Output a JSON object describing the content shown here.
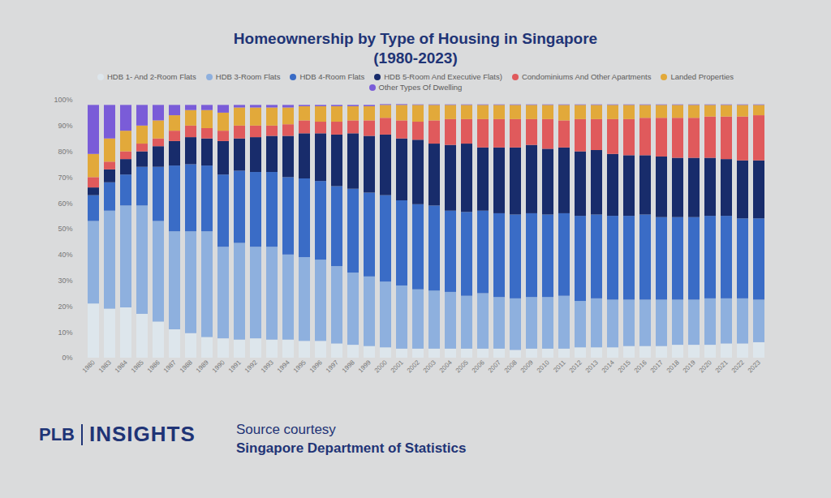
{
  "chart_data": {
    "type": "bar",
    "title": "Homeownership by Type of Housing in Singapore",
    "subtitle": "(1980-2023)",
    "stacked": true,
    "grid": false,
    "legend": "top",
    "categories": [
      "1980",
      "1983",
      "1984",
      "1985",
      "1986",
      "1987",
      "1988",
      "1989",
      "1990",
      "1991",
      "1992",
      "1993",
      "1994",
      "1995",
      "1996",
      "1997",
      "1998",
      "1999",
      "2000",
      "2001",
      "2002",
      "2003",
      "2004",
      "2005",
      "2006",
      "2007",
      "2008",
      "2009",
      "2010",
      "2011",
      "2012",
      "2013",
      "2014",
      "2015",
      "2016",
      "2017",
      "2018",
      "2019",
      "2020",
      "2021",
      "2022",
      "2023"
    ],
    "series": [
      {
        "name": "HDB 1- And 2-Room Flats",
        "color": "#dde6ec",
        "values": [
          21,
          19,
          19.5,
          17,
          14,
          11,
          9.5,
          8,
          7.5,
          7,
          7.5,
          7,
          7,
          6.5,
          6.5,
          5.5,
          5,
          4.5,
          4,
          3.5,
          3.5,
          3.5,
          3.5,
          3.5,
          3.5,
          3.5,
          3,
          3.5,
          3.5,
          3.5,
          4,
          4,
          4,
          4.5,
          4.5,
          4.5,
          5,
          5,
          5,
          5.5,
          5.5,
          6
        ]
      },
      {
        "name": "HDB 3-Room Flats",
        "color": "#8eb0de",
        "values": [
          32,
          38,
          39.5,
          42,
          39,
          38,
          39.5,
          41,
          35.5,
          37.5,
          35.5,
          36,
          33,
          32.5,
          31.5,
          30,
          28,
          27,
          25.5,
          24.5,
          23,
          22.5,
          22,
          20.5,
          21.5,
          20,
          20,
          20,
          20,
          20.5,
          18,
          19,
          18.5,
          18,
          18,
          18,
          17.5,
          17.5,
          18,
          17.5,
          17.5,
          16.5
        ]
      },
      {
        "name": "HDB 4-Room Flats",
        "color": "#3a6cc6",
        "values": [
          10,
          11,
          12,
          15,
          21,
          25.5,
          26,
          25.5,
          28,
          28,
          29,
          29,
          30,
          30.5,
          30.5,
          31,
          32.5,
          32.5,
          33.5,
          33,
          33,
          33,
          31.5,
          32.5,
          32,
          32.5,
          32.5,
          32.5,
          32,
          32,
          33,
          32.5,
          32.5,
          32.5,
          33,
          32,
          32,
          32,
          32,
          32,
          31,
          31.5
        ]
      },
      {
        "name": "HDB 5-Room And Executive Flats)",
        "color": "#182c6b",
        "values": [
          3,
          5,
          6,
          6,
          8,
          9.5,
          10.5,
          10.5,
          13,
          12.5,
          13.5,
          14,
          16,
          17.5,
          18.5,
          20,
          21.5,
          22,
          23.5,
          24,
          25,
          24,
          25.5,
          26.5,
          24.5,
          25.5,
          26,
          26.5,
          25.5,
          25.5,
          25,
          25,
          24,
          23.5,
          23,
          23.5,
          23,
          23,
          22.5,
          22,
          22.5,
          22.5
        ]
      },
      {
        "name": "Condominiums And Other Apartments",
        "color": "#e05a5c",
        "values": [
          4,
          3,
          3,
          3,
          3,
          4,
          4.5,
          4,
          4,
          5,
          4.5,
          4,
          4.5,
          5,
          4.5,
          5,
          5,
          6,
          6.5,
          7,
          7,
          9,
          10,
          9.5,
          11,
          11,
          11,
          10,
          11.5,
          10.5,
          12.5,
          12,
          13.5,
          14,
          14.5,
          15,
          15.5,
          15.5,
          16,
          16.5,
          17,
          17.5
        ]
      },
      {
        "name": "Landed Properties",
        "color": "#e2a93a",
        "values": [
          9,
          9,
          8,
          7,
          7,
          6,
          6,
          7,
          7,
          7,
          7,
          7,
          6.5,
          5.5,
          6,
          6,
          5.5,
          5.5,
          5,
          6,
          6.5,
          6,
          5.5,
          5.5,
          5.5,
          5.5,
          5.5,
          5.5,
          5.5,
          6,
          5.5,
          5.5,
          5.5,
          5.5,
          5,
          5,
          5,
          5,
          4.5,
          4.5,
          4.5,
          4
        ]
      },
      {
        "name": "Other Types Of Dwelling",
        "color": "#7a5cd8",
        "values": [
          19,
          13,
          10,
          8,
          6,
          4,
          2,
          2,
          3,
          1,
          1,
          1,
          1,
          0.5,
          0.5,
          0.5,
          0.5,
          0.5,
          0.3,
          0.3,
          0.2,
          0.2,
          0.2,
          0.2,
          0.2,
          0.2,
          0.2,
          0.2,
          0.2,
          0.2,
          0.2,
          0.2,
          0.2,
          0.2,
          0.2,
          0.2,
          0.2,
          0.2,
          0.2,
          0.2,
          0.2,
          0.2
        ]
      }
    ],
    "ylim": [
      0,
      100
    ],
    "yticks": [
      {
        "value": 0,
        "label": "0%"
      },
      {
        "value": 10,
        "label": "10%"
      },
      {
        "value": 20,
        "label": "20%"
      },
      {
        "value": 30,
        "label": "30%"
      },
      {
        "value": 40,
        "label": "40%"
      },
      {
        "value": 50,
        "label": "50%"
      },
      {
        "value": 60,
        "label": "60%"
      },
      {
        "value": 70,
        "label": "70%"
      },
      {
        "value": 80,
        "label": "80%"
      },
      {
        "value": 90,
        "label": "90%"
      },
      {
        "value": 100,
        "label": "100%"
      }
    ]
  },
  "footer": {
    "logo": [
      "PLB",
      "INSIGHTS"
    ],
    "source": [
      "Source courtesy",
      "Singapore Department of Statistics"
    ]
  }
}
